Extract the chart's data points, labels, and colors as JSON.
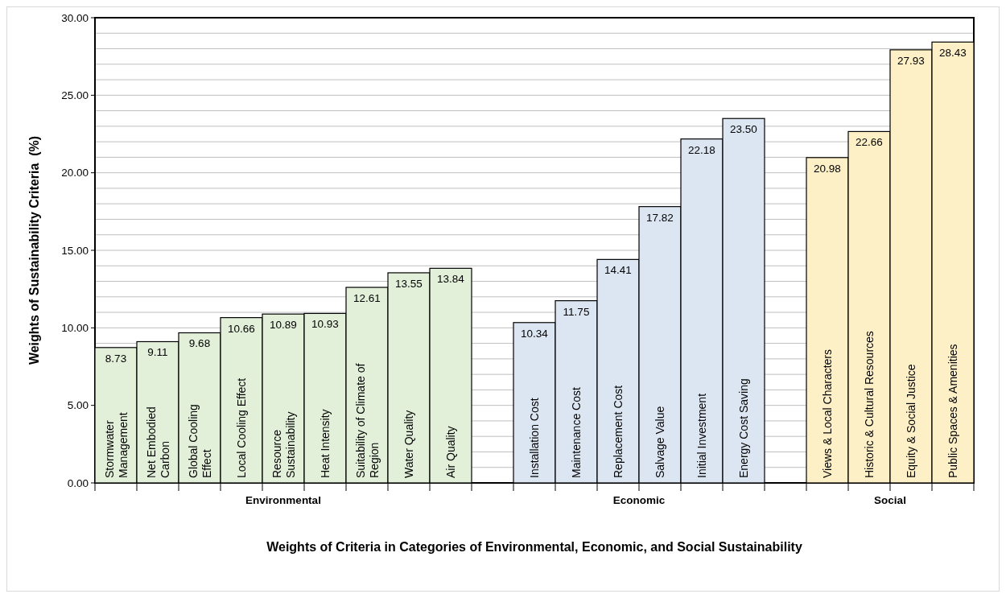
{
  "chart_data": {
    "type": "bar",
    "xlabel": "Weights of Criteria in Categories of Environmental, Economic, and Social Sustainability",
    "ylabel": "Weights of Sustainability Criteria  (%)",
    "categories": [
      "Stormwater Management",
      "Net Embodied Carbon",
      "Global Cooling Effect",
      "Local Cooling Effect",
      "Resource Sustainability",
      "Heat Intensity",
      "Suitability of Climate of Region",
      "Water Quality",
      "Air Quality",
      null,
      "Installation Cost",
      "Maintenance Cost",
      "Replacement Cost",
      "Salvage Value",
      "Initial Investment",
      "Energy Cost Saving",
      null,
      "Views & Local Characters",
      "Historic & Cultural Resources",
      "Equity & Social Justice",
      "Public Spaces & Amenities"
    ],
    "values": [
      8.73,
      9.11,
      9.68,
      10.66,
      10.89,
      10.93,
      12.61,
      13.55,
      13.84,
      null,
      10.34,
      11.75,
      14.41,
      17.82,
      22.18,
      23.5,
      null,
      20.98,
      22.66,
      27.93,
      28.43
    ],
    "value_labels": [
      "8.73",
      "9.11",
      "9.68",
      "10.66",
      "10.89",
      "10.93",
      "12.61",
      "13.55",
      "13.84",
      null,
      "10.34",
      "11.75",
      "14.41",
      "17.82",
      "22.18",
      "23.50",
      null,
      "20.98",
      "22.66",
      "27.93",
      "28.43"
    ],
    "colors": [
      "#e2efd9",
      "#e2efd9",
      "#e2efd9",
      "#e2efd9",
      "#e2efd9",
      "#e2efd9",
      "#e2efd9",
      "#e2efd9",
      "#e2efd9",
      null,
      "#dce6f2",
      "#dce6f2",
      "#dce6f2",
      "#dce6f2",
      "#dce6f2",
      "#dce6f2",
      null,
      "#fdefc6",
      "#fdefc6",
      "#fdefc6",
      "#fdefc6"
    ],
    "annotations": [
      "Environmental",
      "Economic",
      "Social"
    ],
    "ylim": [
      0,
      30
    ],
    "yticks": [
      {
        "value": 0,
        "label": "0.00"
      },
      {
        "value": 1,
        "label": null
      },
      {
        "value": 2,
        "label": null
      },
      {
        "value": 3,
        "label": null
      },
      {
        "value": 4,
        "label": null
      },
      {
        "value": 5,
        "label": "5.00"
      },
      {
        "value": 6,
        "label": null
      },
      {
        "value": 7,
        "label": null
      },
      {
        "value": 8,
        "label": null
      },
      {
        "value": 9,
        "label": null
      },
      {
        "value": 10,
        "label": "10.00"
      },
      {
        "value": 11,
        "label": null
      },
      {
        "value": 12,
        "label": null
      },
      {
        "value": 13,
        "label": null
      },
      {
        "value": 14,
        "label": null
      },
      {
        "value": 15,
        "label": "15.00"
      },
      {
        "value": 16,
        "label": null
      },
      {
        "value": 17,
        "label": null
      },
      {
        "value": 18,
        "label": null
      },
      {
        "value": 19,
        "label": null
      },
      {
        "value": 20,
        "label": "20.00"
      },
      {
        "value": 21,
        "label": null
      },
      {
        "value": 22,
        "label": null
      },
      {
        "value": 23,
        "label": null
      },
      {
        "value": 24,
        "label": null
      },
      {
        "value": 25,
        "label": "25.00"
      },
      {
        "value": 26,
        "label": null
      },
      {
        "value": 27,
        "label": null
      },
      {
        "value": 28,
        "label": null
      },
      {
        "value": 29,
        "label": null
      },
      {
        "value": 30,
        "label": "30.00"
      }
    ],
    "grid": "y"
  }
}
